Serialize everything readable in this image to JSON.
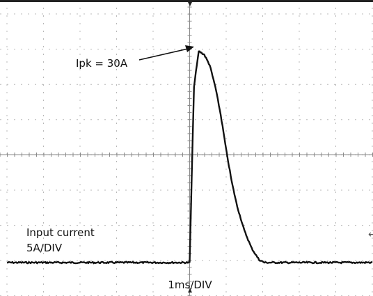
{
  "chart_data": {
    "type": "line",
    "title": "",
    "xlabel": "1ms/DIV",
    "ylabel": "",
    "grid": true,
    "series": [
      {
        "name": "Input current",
        "x_div": [
          0.0,
          5.0,
          5.06,
          5.12,
          5.25,
          5.4,
          5.55,
          5.7,
          5.85,
          6.0,
          6.15,
          6.3,
          6.5,
          6.7,
          6.9,
          7.05,
          10.0
        ],
        "y_div": [
          0.0,
          0.0,
          2.5,
          5.0,
          6.0,
          5.9,
          5.6,
          5.0,
          4.2,
          3.2,
          2.3,
          1.6,
          0.9,
          0.4,
          0.08,
          0.0,
          0.0
        ]
      }
    ],
    "annotations": {
      "channel_label": "Input current",
      "scale_label": "5A/DIV",
      "peak_label": "Ipk = 30A",
      "time_label": "1ms/DIV"
    }
  }
}
